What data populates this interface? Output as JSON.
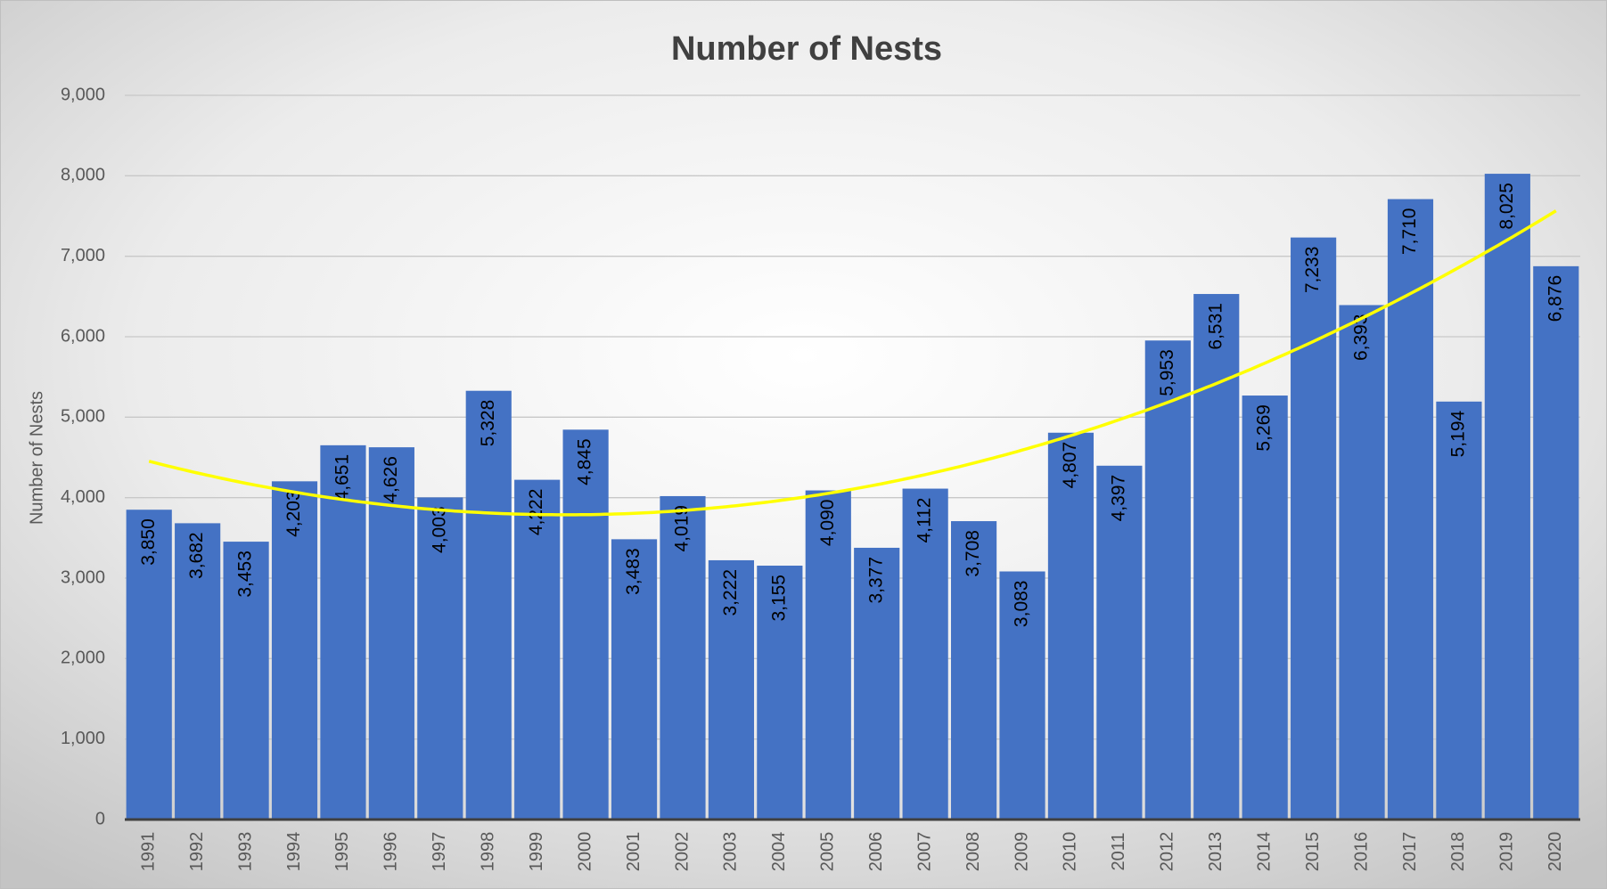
{
  "chart_data": {
    "type": "bar",
    "title": "Number of Nests",
    "y_label": "Number of Nests",
    "categories": [
      "1991",
      "1992",
      "1993",
      "1994",
      "1995",
      "1996",
      "1997",
      "1998",
      "1999",
      "2000",
      "2001",
      "2002",
      "2003",
      "2004",
      "2005",
      "2006",
      "2007",
      "2008",
      "2009",
      "2010",
      "2011",
      "2012",
      "2013",
      "2014",
      "2015",
      "2016",
      "2017",
      "2018",
      "2019",
      "2020"
    ],
    "values": [
      3850,
      3682,
      3453,
      4203,
      4651,
      4626,
      4003,
      5328,
      4222,
      4845,
      3483,
      4019,
      3222,
      3155,
      4090,
      3377,
      4112,
      3708,
      3083,
      4807,
      4397,
      5953,
      6531,
      5269,
      7233,
      6393,
      7710,
      5194,
      8025,
      6876
    ],
    "value_labels": [
      "3,850",
      "3,682",
      "3,453",
      "4,203",
      "4,651",
      "4,626",
      "4,003",
      "5,328",
      "4,222",
      "4,845",
      "3,483",
      "4,019",
      "3,222",
      "3,155",
      "4,090",
      "3,377",
      "4,112",
      "3,708",
      "3,083",
      "4,807",
      "4,397",
      "5,953",
      "6,531",
      "5,269",
      "7,233",
      "6,393",
      "7,710",
      "5,194",
      "8,025",
      "6,876"
    ],
    "color": "#4472c4",
    "ylim": [
      0,
      9000
    ],
    "yticks": [
      0,
      {
        "value": 1000,
        "label": "1,000"
      },
      {
        "value": 2000,
        "label": "2,000"
      },
      {
        "value": 3000,
        "label": "3,000"
      },
      {
        "value": 4000,
        "label": "4,000"
      },
      {
        "value": 5000,
        "label": "5,000"
      },
      {
        "value": 6000,
        "label": "6,000"
      },
      {
        "value": 7000,
        "label": "7,000"
      },
      {
        "value": 8000,
        "label": "8,000"
      },
      {
        "value": 9000,
        "label": "9,000"
      }
    ],
    "grid": true,
    "trendline": {
      "type": "polynomial",
      "order": 2,
      "color": "#ffff00"
    }
  }
}
